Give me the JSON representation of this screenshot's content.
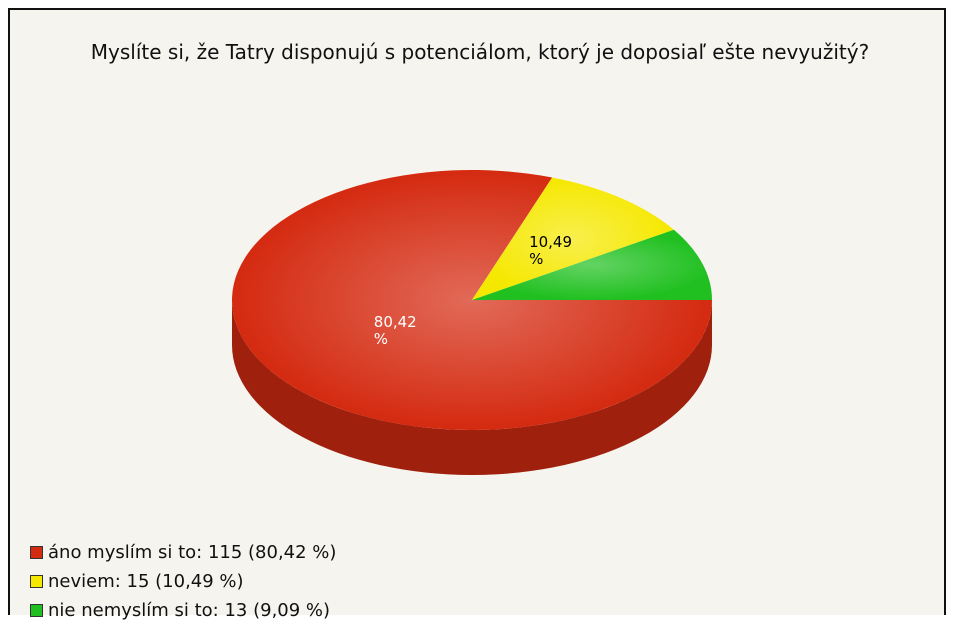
{
  "chart_data": {
    "type": "pie",
    "title": "Myslíte si, že Tatry disponujú s potenciálom, ktorý je doposiaľ ešte nevyužitý?",
    "categories": [
      "áno myslím si to: 115 (80,42 %)",
      "neviem: 15 (10,49 %)",
      "nie nemyslím si to: 13 (9,09 %)"
    ],
    "values": [
      80.42,
      10.49,
      9.09
    ],
    "value_labels": [
      "80,42 %",
      "10,49 %",
      null
    ],
    "colors": [
      "#d42a10",
      "#f5e800",
      "#20c020"
    ],
    "legend": "bottom-left"
  }
}
